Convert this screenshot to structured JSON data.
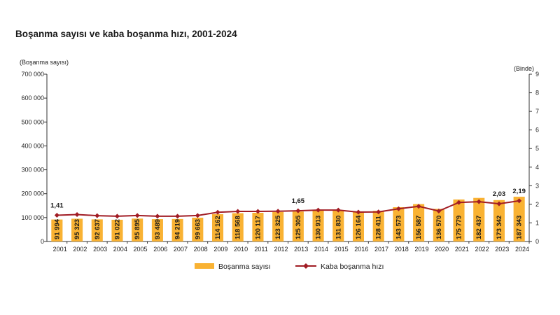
{
  "title": "Boşanma sayısı ve kaba boşanma hızı, 2001-2024",
  "colors": {
    "bar": "#F9B233",
    "line": "#A11C24",
    "axis": "#333333"
  },
  "chart_data": {
    "type": "bar",
    "title": "Boşanma sayısı ve kaba boşanma hızı, 2001-2024",
    "ylabel": "(Boşanma sayısı)",
    "y2label": "(Binde)",
    "ylim": [
      0,
      700000
    ],
    "y2lim": [
      0,
      9
    ],
    "yticks": [
      "0",
      "100 000",
      "200 000",
      "300 000",
      "400 000",
      "500 000",
      "600 000",
      "700 000"
    ],
    "y2ticks": [
      "0",
      "1",
      "2",
      "3",
      "4",
      "5",
      "6",
      "7",
      "8",
      "9"
    ],
    "grid": false,
    "legend": "bottom",
    "categories": [
      "2001",
      "2002",
      "2003",
      "2004",
      "2005",
      "2006",
      "2007",
      "2008",
      "2009",
      "2010",
      "2011",
      "2012",
      "2013",
      "2014",
      "2015",
      "2016",
      "2017",
      "2018",
      "2019",
      "2020",
      "2021",
      "2022",
      "2023",
      "2024"
    ],
    "series": [
      {
        "name": "Boşanma sayısı",
        "type": "bar",
        "axis": "left",
        "values": [
          91994,
          95323,
          92637,
          91022,
          95895,
          93489,
          94219,
          99663,
          114162,
          118568,
          120117,
          123325,
          125305,
          130913,
          131830,
          126164,
          128411,
          143573,
          156587,
          136570,
          175779,
          182437,
          173342,
          187343
        ],
        "labels": [
          "91 994",
          "95 323",
          "92 637",
          "91 022",
          "95 895",
          "93 489",
          "94 219",
          "99 663",
          "114 162",
          "118 568",
          "120 117",
          "123 325",
          "125 305",
          "130 913",
          "131 830",
          "126 164",
          "128 411",
          "143 573",
          "156 587",
          "136 570",
          "175 779",
          "182 437",
          "173 342",
          "187 343"
        ]
      },
      {
        "name": "Kaba boşanma hızı",
        "type": "line",
        "axis": "right",
        "values": [
          1.41,
          1.45,
          1.39,
          1.36,
          1.4,
          1.36,
          1.36,
          1.4,
          1.57,
          1.62,
          1.62,
          1.63,
          1.65,
          1.69,
          1.69,
          1.58,
          1.59,
          1.76,
          1.89,
          1.64,
          2.1,
          2.14,
          2.03,
          2.19
        ],
        "annotations": [
          {
            "index": 0,
            "text": "1,41"
          },
          {
            "index": 12,
            "text": "1,65"
          },
          {
            "index": 22,
            "text": "2,03"
          },
          {
            "index": 23,
            "text": "2,19"
          }
        ]
      }
    ]
  }
}
